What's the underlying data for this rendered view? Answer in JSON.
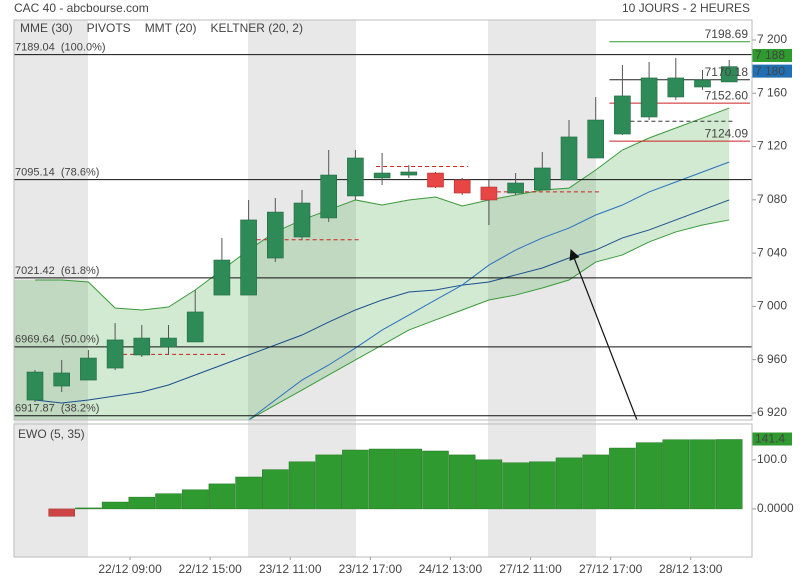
{
  "chart_data": {
    "type": "candlestick",
    "title": "CAC 40 - abcbourse.com",
    "subtitle": "10 JOURS - 2 HEURES",
    "legend": [
      {
        "name": "MME (30)",
        "color": "#1b4f8f"
      },
      {
        "name": "PIVOTS",
        "color": "#666666"
      },
      {
        "name": "MMT (20)",
        "color": "#2a72c0"
      },
      {
        "name": "KELTNER (20, 2)",
        "color": "#3a9a3a"
      }
    ],
    "x_labels": [
      "22/12 09:00",
      "22/12 15:00",
      "23/12 11:00",
      "23/12 17:00",
      "24/12 13:00",
      "27/12 11:00",
      "27/12 17:00",
      "28/12 13:00"
    ],
    "ylim": [
      6914.7,
      7215
    ],
    "yticks": [
      {
        "value": 7200,
        "label": "7 200"
      },
      {
        "value": 7160,
        "label": "7 160"
      },
      {
        "value": 7120,
        "label": "7 120"
      },
      {
        "value": 7080,
        "label": "7 080"
      },
      {
        "value": 7040,
        "label": "7 040"
      },
      {
        "value": 7000,
        "label": "7 000"
      },
      {
        "value": 6960,
        "label": "6 960"
      },
      {
        "value": 6920,
        "label": "6 920"
      }
    ],
    "up_color": "#2e8b57",
    "down_color": "#e84545",
    "candles": {
      "open": [
        6929.7,
        6940.2,
        6944.7,
        6953.7,
        6963.5,
        6969.5,
        6973.3,
        7008.5,
        7008.5,
        7036.3,
        7052.1,
        7066.4,
        7082.9,
        7096.4,
        7098.6,
        7100.1,
        7094.9,
        7089.6,
        7085.1,
        7087.4,
        7094.9,
        7111.4,
        7129.4,
        7142.2,
        7157.2,
        7164.7,
        7168.5
      ],
      "high": [
        6952.2,
        6959.8,
        6967.2,
        6987.5,
        6986,
        6986,
        7012.3,
        7051.3,
        7079.9,
        7081.4,
        7087.4,
        7117.4,
        7117.4,
        7115.2,
        7106.1,
        7100.9,
        7096.4,
        7094.9,
        7100.1,
        7115.9,
        7139.9,
        7157.2,
        7181.2,
        7183.5,
        7186.5,
        7177.5,
        7185
      ],
      "low": [
        6928.2,
        6935.7,
        6944.7,
        6952.2,
        6962,
        6963.5,
        6973.3,
        7008.5,
        7008.5,
        7033.3,
        7049.8,
        7063.4,
        7079.9,
        7091.1,
        7096.4,
        7088.9,
        7083.6,
        7061.1,
        7083.6,
        7087.4,
        7094.9,
        7111.4,
        7128.7,
        7139.9,
        7155,
        7162.5,
        7168.5
      ],
      "close": [
        6950.7,
        6950,
        6961.2,
        6974.8,
        6976.2,
        6976.2,
        6995.8,
        7034.8,
        7064.9,
        7070.8,
        7077.6,
        7098.6,
        7111.4,
        7100.1,
        7100.9,
        7089.6,
        7085.1,
        7079.9,
        7092.6,
        7103.9,
        7127.2,
        7139.9,
        7158,
        7171.5,
        7171.5,
        7170,
        7180
      ]
    },
    "keltner": {
      "color": "#3a9a3a",
      "fill": "rgba(90,180,90,0.28)",
      "upper": [
        7019.8,
        7019.8,
        7018.3,
        6998.8,
        6997.3,
        6999.5,
        7012.3,
        7027.3,
        7042.3,
        7055.9,
        7064.9,
        7072.4,
        7079.9,
        7076.1,
        7079.9,
        7082.1,
        7075.4,
        7079.9,
        7083.6,
        7087.4,
        7088.8,
        7102.4,
        7117.4,
        7126.4,
        7133.9,
        7141.4,
        7148.9
      ],
      "lower": [
        null,
        null,
        null,
        null,
        null,
        null,
        null,
        null,
        6914.7,
        6926,
        6937.2,
        6948.5,
        6959.8,
        6971,
        6982.2,
        6989.8,
        6997.3,
        7004.8,
        7008.5,
        7013.8,
        7019.8,
        7033.3,
        7038.6,
        7048.4,
        7055.9,
        7061.1,
        7064.9
      ]
    },
    "series": [
      {
        "name": "MME (30)",
        "color": "#1b4f8f",
        "values": [
          6929.7,
          6927.5,
          6929.7,
          6932.7,
          6935.7,
          6941,
          6948.5,
          6956,
          6963.5,
          6971,
          6978.5,
          6988.2,
          6997.3,
          7004.8,
          7010.8,
          7012.3,
          7016,
          7018.3,
          7023.6,
          7028.8,
          7036.3,
          7042.3,
          7051.4,
          7057.4,
          7064.9,
          7072.4,
          7079.9
        ]
      },
      {
        "name": "MMT (20)",
        "color": "#2a72c0",
        "values": [
          null,
          null,
          null,
          null,
          null,
          null,
          null,
          null,
          6914.7,
          6929.7,
          6944.7,
          6956,
          6968.7,
          6982.2,
          6993.5,
          7004.8,
          7016,
          7031,
          7042.3,
          7051.4,
          7058.8,
          7068.6,
          7076.1,
          7085.9,
          7093.4,
          7100.9,
          7108.4
        ]
      }
    ],
    "fib_levels": [
      {
        "value": 7189.04,
        "label": "7189.04  (100.0%)"
      },
      {
        "value": 7095.14,
        "label": "7095.14  (78.6%)"
      },
      {
        "value": 7021.42,
        "label": "7021.42  (61.8%)"
      },
      {
        "value": 6969.64,
        "label": "6969.64  (50.0%)"
      },
      {
        "value": 6917.87,
        "label": "6917.87  (38.2%)"
      }
    ],
    "pivot_history": [
      {
        "start": 3,
        "end": 7,
        "value": 6964
      },
      {
        "start": 8,
        "end": 12,
        "value": 7050
      },
      {
        "start": 13,
        "end": 16,
        "value": 7105
      },
      {
        "start": 17,
        "end": 21,
        "value": 7086
      },
      {
        "start": 22,
        "end": 26,
        "value": 7139
      }
    ],
    "pivots": [
      {
        "value": 7198.69,
        "label": "7198.69",
        "color": "#2e9b2e"
      },
      {
        "value": 7170.18,
        "label": "7170.18",
        "color": "#222222"
      },
      {
        "value": 7152.6,
        "label": "7152.60",
        "color": "#cc2222"
      },
      {
        "value": 7124.09,
        "label": "7124.09",
        "color": "#cc2222"
      }
    ],
    "price_markers": [
      {
        "value": 7188,
        "label": "7 188",
        "color": "#2e9b2e"
      },
      {
        "value": 7180,
        "label": "7 180",
        "color": "#1f6fb5"
      }
    ],
    "ewo": {
      "title": "EWO (5, 35)",
      "color": "#2f9a2f",
      "negative_color": "#cc4444",
      "values": [
        null,
        -15,
        2,
        14,
        24,
        31,
        39,
        51,
        65,
        80,
        96,
        110,
        120,
        122,
        122,
        118,
        110,
        100,
        94,
        96,
        104,
        110,
        124,
        135,
        141,
        141,
        141.4
      ],
      "last_label": "141.4",
      "ylim": [
        -98,
        173
      ],
      "yticks": [
        {
          "value": 100,
          "label": "100.0"
        },
        {
          "value": 0,
          "label": "0.0000"
        }
      ]
    }
  }
}
